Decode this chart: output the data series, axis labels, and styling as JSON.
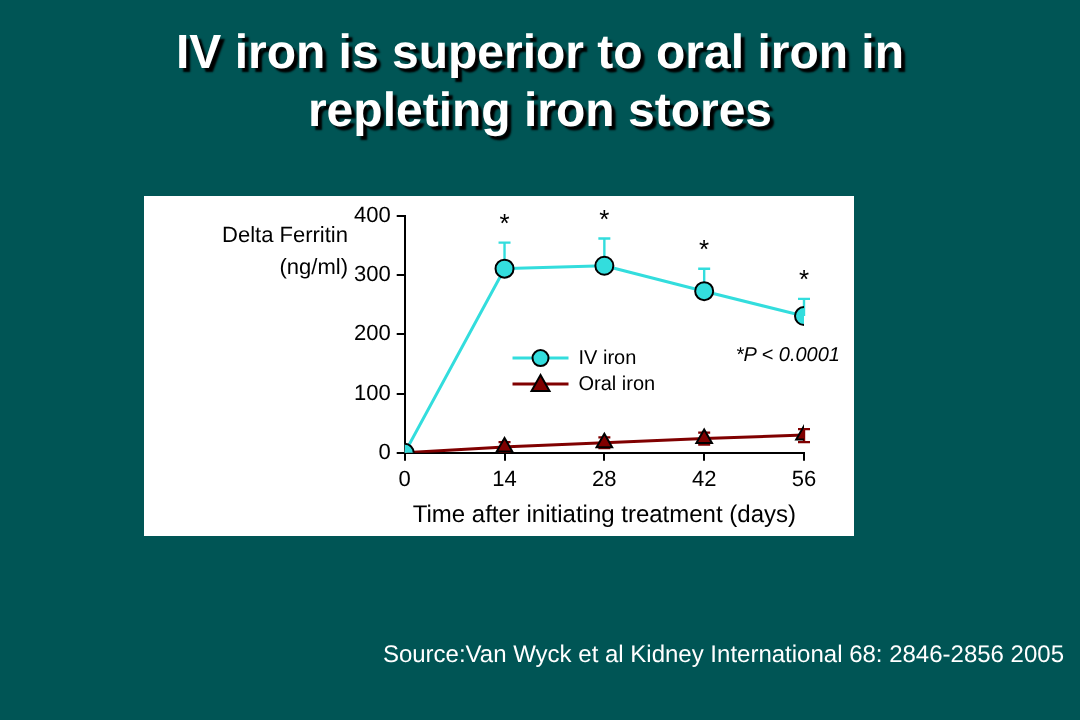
{
  "chart_data": {
    "type": "line",
    "title": "IV iron is superior to oral iron in repleting iron stores",
    "xlabel": "Time after initiating treatment (days)",
    "ylabel": "Delta Ferritin (ng/ml)",
    "x": [
      0,
      14,
      28,
      42,
      56
    ],
    "xlim": [
      0,
      56
    ],
    "xticks": [
      0,
      14,
      28,
      42,
      56
    ],
    "ylim": [
      0,
      400
    ],
    "yticks": [
      0,
      100,
      200,
      300,
      400
    ],
    "grid": false,
    "legend": "center",
    "series": [
      {
        "name": "IV iron",
        "color": "#33dddd",
        "marker": "circle",
        "values": [
          0,
          311,
          316,
          273,
          231
        ],
        "errors": [
          null,
          [
            311,
            355
          ],
          [
            316,
            362
          ],
          [
            273,
            311
          ],
          [
            231,
            260
          ]
        ]
      },
      {
        "name": "Oral iron",
        "color": "#800000",
        "marker": "triangle",
        "values": [
          0,
          10,
          17,
          24,
          30
        ],
        "errors": [
          null,
          [
            2,
            18
          ],
          [
            8,
            26
          ],
          [
            14,
            34
          ],
          [
            18,
            40
          ]
        ]
      }
    ],
    "annotations": [
      {
        "text": "*",
        "x": 14,
        "y": 311
      },
      {
        "text": "*",
        "x": 28,
        "y": 316
      },
      {
        "text": "*",
        "x": 42,
        "y": 273
      },
      {
        "text": "*",
        "x": 56,
        "y": 231
      },
      "*P < 0.0001",
      "Source:Van Wyck et al Kidney International 68: 2846-2856 2005"
    ]
  }
}
